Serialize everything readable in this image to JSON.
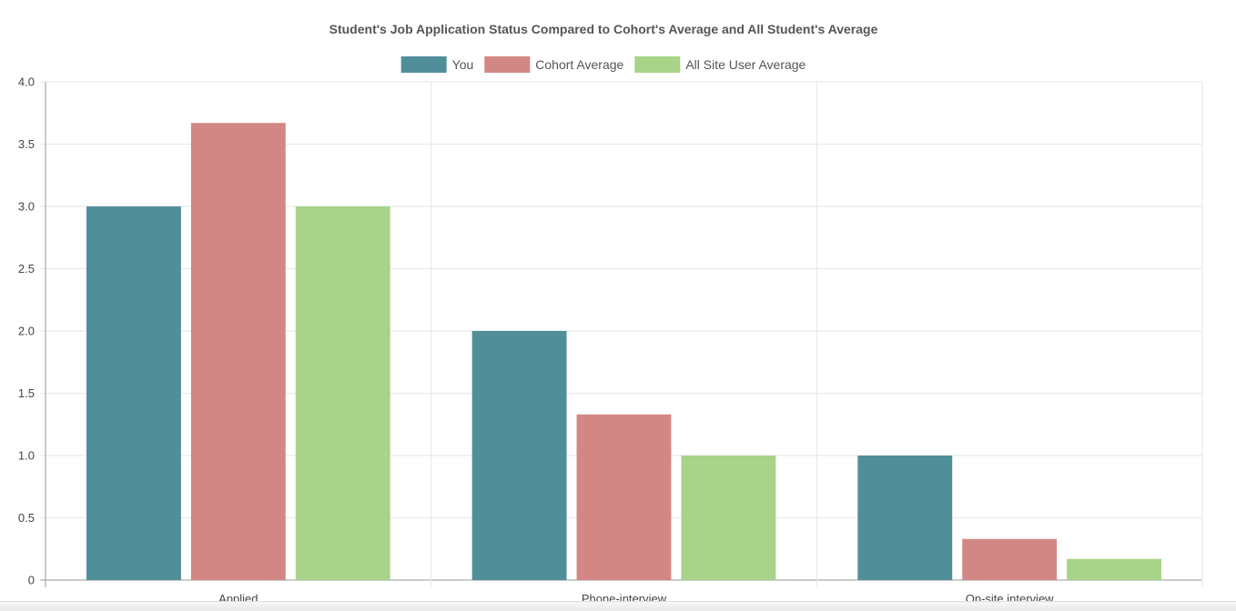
{
  "chart_data": {
    "type": "bar",
    "title": "Student's Job Application Status Compared to Cohort's Average and All Student's Average",
    "xlabel": "",
    "ylabel": "",
    "categories": [
      "Applied",
      "Phone-interview",
      "On-site interview"
    ],
    "series": [
      {
        "name": "You",
        "color": "#508f9a",
        "values": [
          3,
          2,
          1
        ]
      },
      {
        "name": "Cohort Average",
        "color": "#d38785",
        "values": [
          3.67,
          1.33,
          0.33
        ]
      },
      {
        "name": "All Site User Average",
        "color": "#a7d488",
        "values": [
          3,
          1,
          0.17
        ]
      }
    ],
    "ylim": [
      0,
      4
    ],
    "y_ticks": [
      "0",
      "0.5",
      "1.0",
      "1.5",
      "2.0",
      "2.5",
      "3.0",
      "3.5",
      "4.0"
    ],
    "grid": true,
    "legend_position": "top-center"
  }
}
